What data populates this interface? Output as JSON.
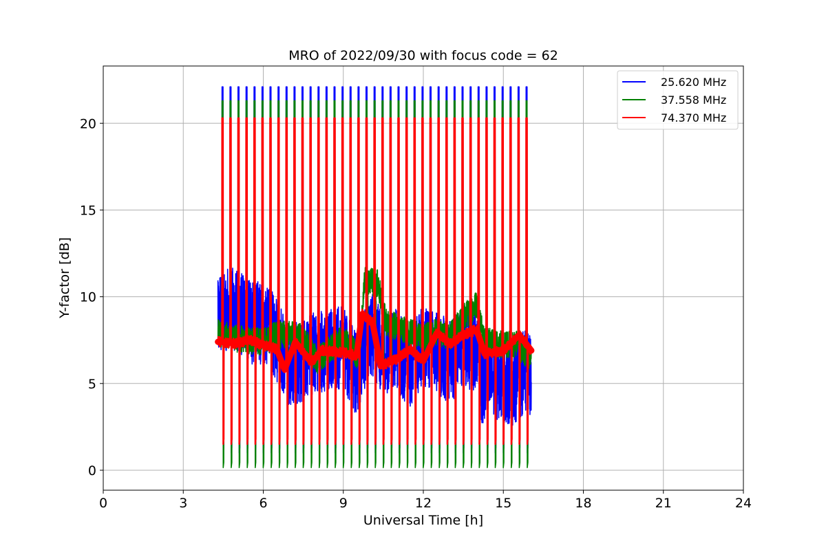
{
  "chart_data": {
    "type": "line",
    "title": "MRO of 2022/09/30 with focus code = 62",
    "xlabel": "Universal Time [h]",
    "ylabel": "Y-factor [dB]",
    "xlim": [
      0,
      24
    ],
    "ylim": [
      -1.15,
      23.3
    ],
    "xticks": [
      0,
      3,
      6,
      9,
      12,
      15,
      18,
      21,
      24
    ],
    "yticks": [
      0,
      5,
      10,
      15,
      20
    ],
    "grid": true,
    "legend_position": "top-right",
    "data_span_h": [
      4.3,
      16.05
    ],
    "calibration_pulse_period_h": 0.3,
    "series": [
      {
        "name": "25.620 MHz",
        "color": "#0000ff",
        "pulse_peak": 22.1,
        "pulse_floor": 1.0,
        "baseline_points": [
          [
            4.3,
            9.2
          ],
          [
            5.0,
            9.3
          ],
          [
            5.5,
            8.5
          ],
          [
            6.2,
            8.5
          ],
          [
            6.5,
            7.5
          ],
          [
            7.0,
            6.0
          ],
          [
            8.0,
            6.8
          ],
          [
            9.0,
            7.1
          ],
          [
            9.5,
            5.5
          ],
          [
            10.0,
            8.0
          ],
          [
            10.5,
            6.8
          ],
          [
            11.0,
            6.9
          ],
          [
            11.5,
            6.0
          ],
          [
            12.0,
            7.2
          ],
          [
            12.5,
            6.8
          ],
          [
            13.0,
            6.2
          ],
          [
            13.5,
            7.1
          ],
          [
            14.0,
            7.0
          ],
          [
            14.2,
            5.0
          ],
          [
            14.8,
            5.3
          ],
          [
            15.3,
            4.9
          ],
          [
            15.8,
            5.7
          ],
          [
            16.05,
            5.5
          ]
        ],
        "baseline_swing": 2.4
      },
      {
        "name": "37.558 MHz",
        "color": "#008000",
        "pulse_peak": 21.3,
        "pulse_floor": 0.15,
        "baseline_points": [
          [
            4.3,
            7.9
          ],
          [
            5.0,
            7.6
          ],
          [
            6.0,
            7.4
          ],
          [
            6.5,
            7.8
          ],
          [
            7.2,
            7.8
          ],
          [
            7.6,
            7.5
          ],
          [
            8.0,
            6.3
          ],
          [
            9.0,
            7.6
          ],
          [
            9.6,
            6.5
          ],
          [
            9.8,
            10.9
          ],
          [
            10.3,
            10.8
          ],
          [
            10.6,
            8.5
          ],
          [
            11.5,
            8.0
          ],
          [
            12.0,
            7.6
          ],
          [
            12.5,
            8.0
          ],
          [
            13.0,
            7.7
          ],
          [
            13.5,
            8.8
          ],
          [
            14.0,
            9.6
          ],
          [
            14.3,
            7.5
          ],
          [
            15.0,
            7.2
          ],
          [
            15.5,
            7.3
          ],
          [
            16.05,
            6.4
          ]
        ],
        "baseline_swing": 0.8
      },
      {
        "name": "74.370 MHz",
        "color": "#ff0000",
        "pulse_peak": 20.3,
        "pulse_floor": 1.5,
        "baseline_points": [
          [
            4.3,
            7.4
          ],
          [
            5.0,
            7.3
          ],
          [
            5.5,
            7.5
          ],
          [
            6.0,
            7.2
          ],
          [
            6.5,
            7.0
          ],
          [
            6.8,
            5.8
          ],
          [
            7.2,
            7.4
          ],
          [
            7.8,
            6.2
          ],
          [
            8.2,
            6.9
          ],
          [
            9.0,
            6.8
          ],
          [
            9.5,
            6.6
          ],
          [
            9.7,
            9.0
          ],
          [
            10.1,
            8.5
          ],
          [
            10.4,
            6.0
          ],
          [
            11.0,
            6.4
          ],
          [
            11.5,
            7.0
          ],
          [
            12.0,
            6.3
          ],
          [
            12.5,
            7.9
          ],
          [
            13.0,
            7.3
          ],
          [
            13.5,
            7.8
          ],
          [
            14.0,
            8.1
          ],
          [
            14.3,
            6.7
          ],
          [
            15.0,
            6.9
          ],
          [
            15.6,
            7.8
          ],
          [
            16.05,
            6.9
          ]
        ],
        "baseline_swing": 0.3
      }
    ]
  }
}
